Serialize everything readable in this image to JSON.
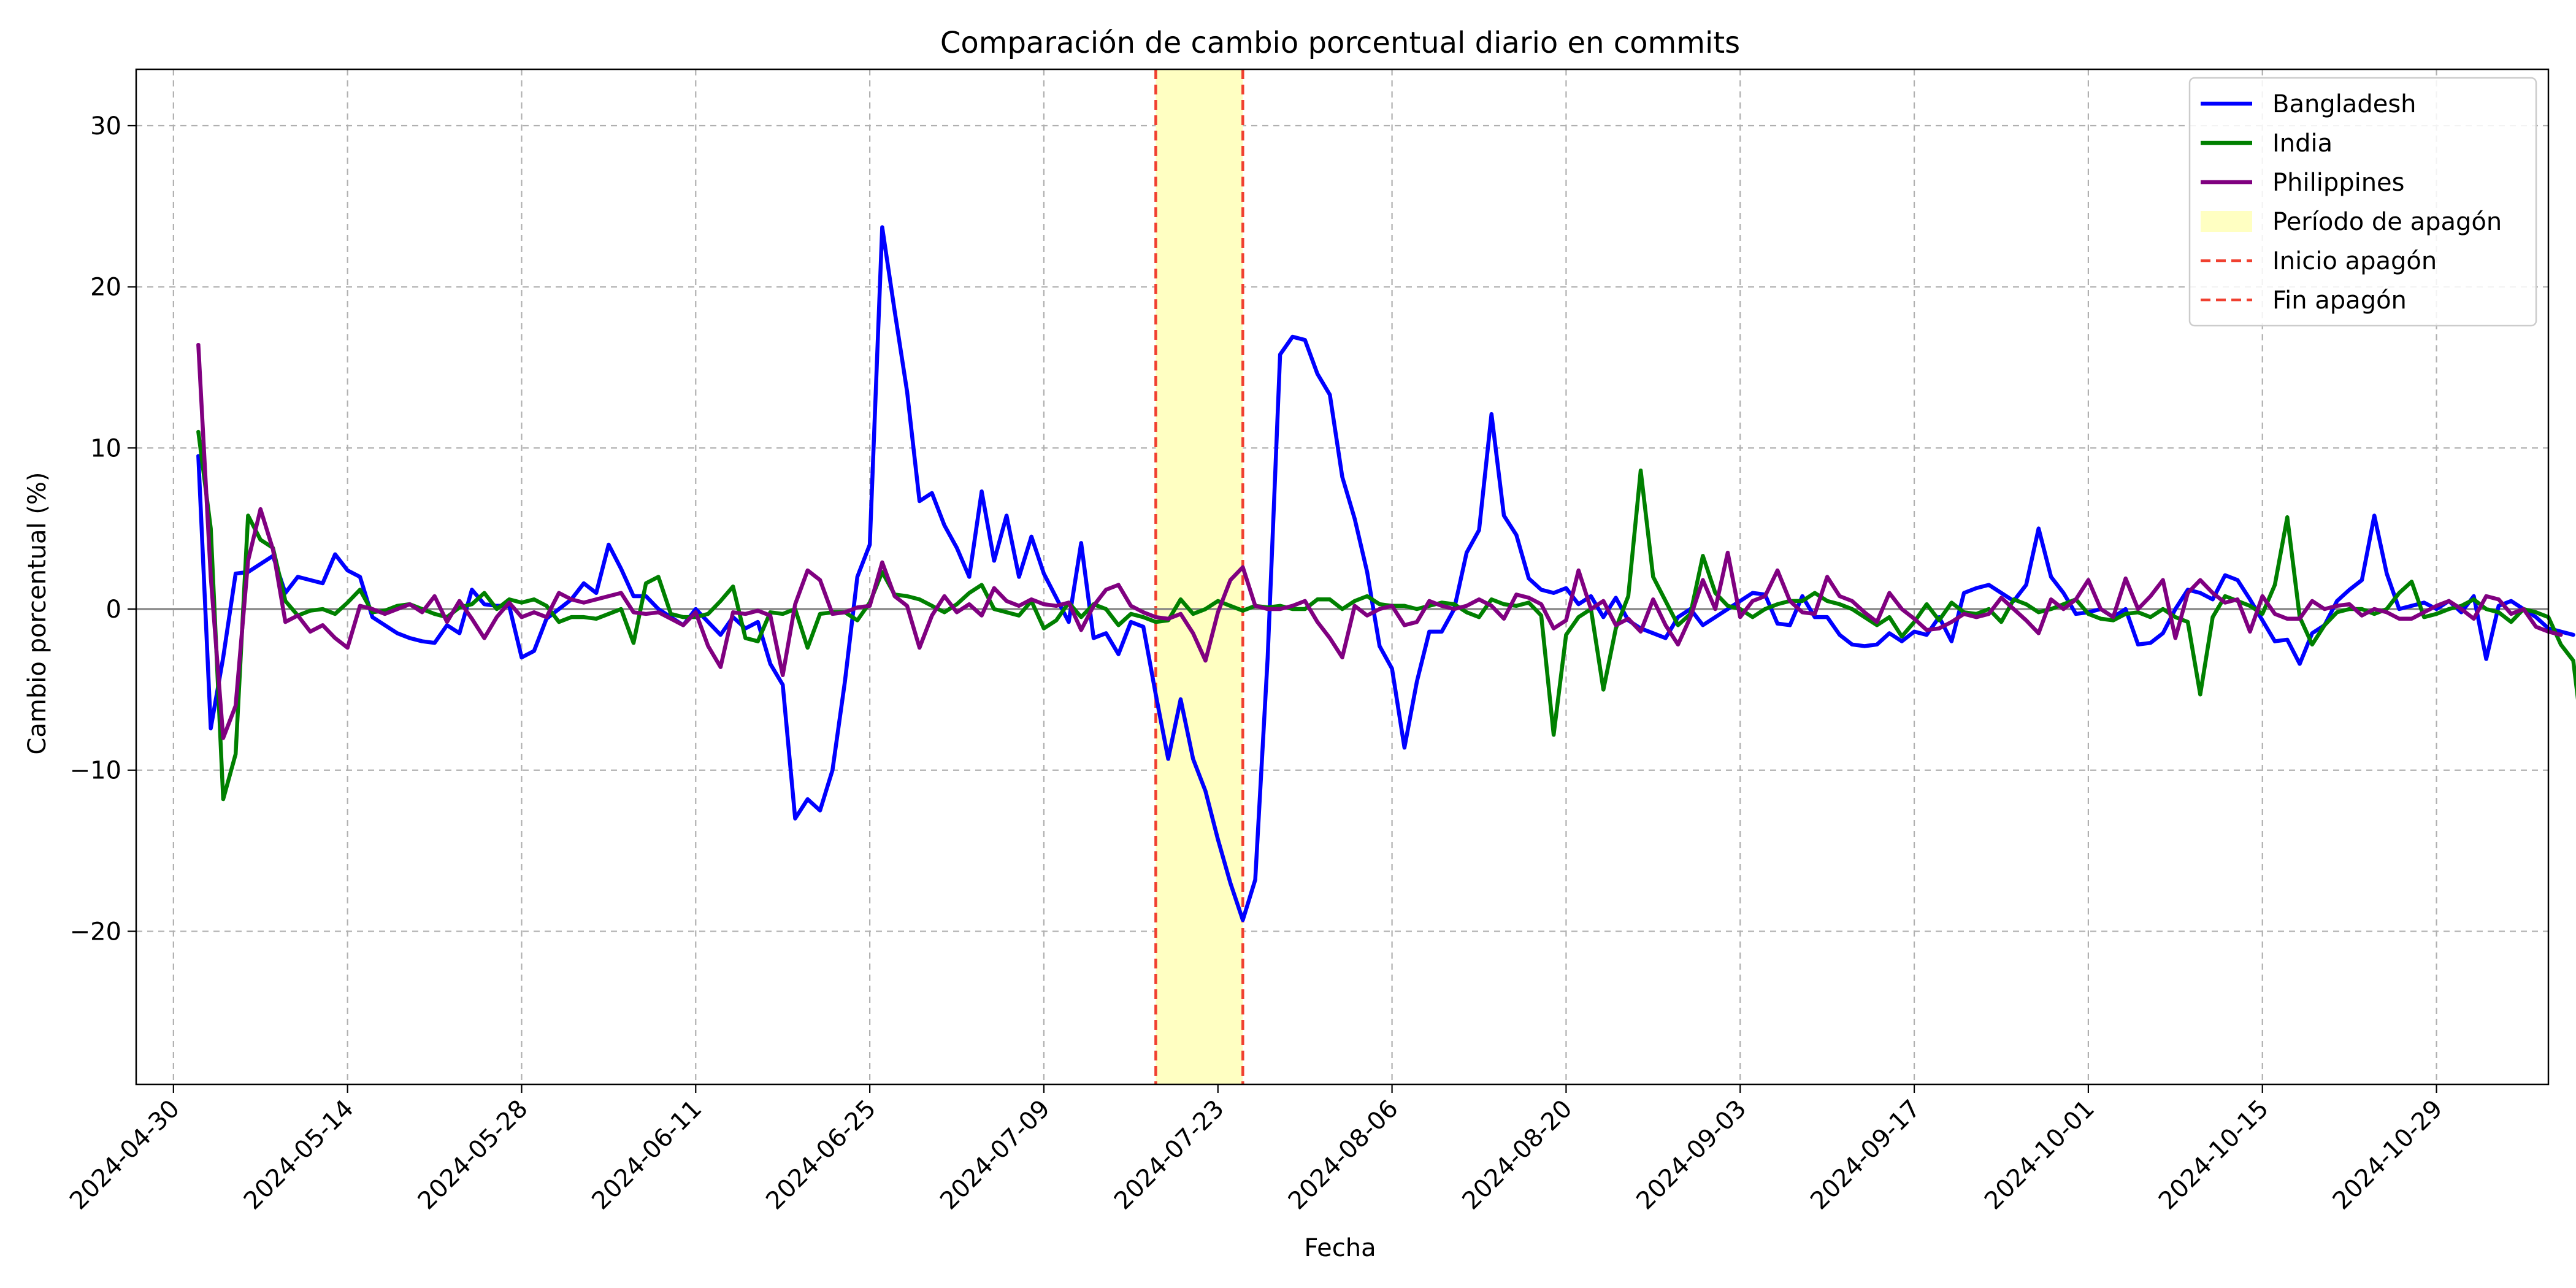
{
  "chart_data": {
    "type": "line",
    "title": "Comparación de cambio porcentual diario en commits",
    "xlabel": "Fecha",
    "ylabel": "Cambio porcentual (%)",
    "x_start": "2024-05-02",
    "x_end": "2024-11-01",
    "xlim": [
      "2024-04-27",
      "2024-11-07"
    ],
    "ylim": [
      -29.5,
      33.5
    ],
    "x_ticks": [
      "2024-04-30",
      "2024-05-14",
      "2024-05-28",
      "2024-06-11",
      "2024-06-25",
      "2024-07-09",
      "2024-07-23",
      "2024-08-06",
      "2024-08-20",
      "2024-09-03",
      "2024-09-17",
      "2024-10-01",
      "2024-10-15",
      "2024-10-29"
    ],
    "y_ticks": [
      -20,
      -10,
      0,
      10,
      20,
      30
    ],
    "grid": true,
    "zero_line": true,
    "legend_position": "top-right",
    "blackout": {
      "start": "2024-07-18",
      "end": "2024-07-25",
      "label": "Período de apagón",
      "start_label": "Inicio apagón",
      "end_label": "Fin apagón",
      "fill_color": "#ffffc2",
      "line_color": "#f04030"
    },
    "series": [
      {
        "name": "Bangladesh",
        "color": "#0000ff",
        "values": [
          9.5,
          -7.4,
          -3.0,
          2.2,
          2.3,
          2.8,
          3.3,
          1.0,
          2.0,
          1.8,
          1.6,
          3.4,
          2.4,
          2.0,
          -0.5,
          -1.0,
          -1.5,
          -1.8,
          -2.0,
          -2.1,
          -1.0,
          -1.5,
          1.2,
          0.3,
          0.2,
          0.2,
          -3.0,
          -2.6,
          -0.6,
          0.0,
          0.6,
          1.6,
          1.0,
          4.0,
          2.5,
          0.8,
          0.8,
          0.0,
          -0.5,
          -1.0,
          0.0,
          -0.8,
          -1.6,
          -0.5,
          -1.2,
          -0.8,
          -3.4,
          -4.7,
          -13.0,
          -11.8,
          -12.5,
          -10.0,
          -4.5,
          2.0,
          4.0,
          23.7,
          18.5,
          13.5,
          6.7,
          7.2,
          5.2,
          3.8,
          2.0,
          7.3,
          3.0,
          5.8,
          2.0,
          4.5,
          2.2,
          0.7,
          -0.8,
          4.1,
          -1.8,
          -1.5,
          -2.8,
          -0.8,
          -1.1,
          -5.3,
          -9.3,
          -5.6,
          -9.3,
          -11.3,
          -14.3,
          -17.0,
          -19.3,
          -16.8,
          -3.0,
          15.8,
          16.9,
          16.7,
          14.6,
          13.3,
          8.2,
          5.6,
          2.3,
          -2.3,
          -3.7,
          -8.6,
          -4.5,
          -1.4,
          -1.4,
          0.0,
          3.5,
          4.9,
          12.1,
          5.8,
          4.6,
          1.9,
          1.2,
          1.0,
          1.3,
          0.3,
          0.8,
          -0.5,
          0.7,
          -0.7,
          -1.2,
          -1.5,
          -1.8,
          -0.5,
          0.0,
          -1.0,
          -0.5,
          0.0,
          0.5,
          1.0,
          0.9,
          -0.9,
          -1.0,
          0.8,
          -0.5,
          -0.5,
          -1.6,
          -2.2,
          -2.3,
          -2.2,
          -1.5,
          -2.0,
          -1.4,
          -1.6,
          -0.5,
          -2.0,
          1.0,
          1.3,
          1.5,
          1.0,
          0.5,
          1.5,
          5.0,
          2.0,
          1.0,
          -0.3,
          -0.2,
          0.0,
          -0.5,
          0.0,
          -2.2,
          -2.1,
          -1.5,
          0.0,
          1.2,
          1.0,
          0.6,
          2.1,
          1.8,
          0.6,
          -0.7,
          -2.0,
          -1.9,
          -3.4,
          -1.5,
          -1.0,
          0.5,
          1.2,
          1.8,
          5.8,
          2.2,
          0.0,
          0.2,
          0.4,
          0.0,
          0.5,
          -0.2,
          0.8,
          -3.1,
          0.2,
          0.5,
          0.0,
          -0.5,
          -1.2,
          -1.4,
          -1.6
        ]
      },
      {
        "name": "India",
        "color": "#008000",
        "values": [
          11.0,
          5.0,
          -11.8,
          -9.0,
          5.8,
          4.3,
          3.8,
          0.5,
          -0.4,
          -0.1,
          0.0,
          -0.3,
          0.4,
          1.2,
          -0.2,
          -0.1,
          0.2,
          0.3,
          0.0,
          -0.3,
          -0.5,
          0.1,
          0.3,
          1.0,
          0.0,
          0.6,
          0.4,
          0.6,
          0.2,
          -0.8,
          -0.5,
          -0.5,
          -0.6,
          -0.3,
          0.0,
          -2.1,
          1.6,
          2.0,
          -0.3,
          -0.5,
          -0.5,
          -0.3,
          0.5,
          1.4,
          -1.8,
          -2.0,
          -0.2,
          -0.3,
          0.0,
          -2.4,
          -0.3,
          -0.2,
          -0.2,
          -0.7,
          0.4,
          2.3,
          0.9,
          0.8,
          0.6,
          0.2,
          -0.2,
          0.3,
          1.0,
          1.5,
          0.0,
          -0.2,
          -0.4,
          0.5,
          -1.2,
          -0.7,
          0.4,
          -0.5,
          0.3,
          0.0,
          -1.0,
          -0.3,
          -0.5,
          -0.8,
          -0.7,
          0.6,
          -0.3,
          0.0,
          0.5,
          0.2,
          -0.1,
          0.2,
          0.1,
          0.2,
          0.0,
          0.0,
          0.6,
          0.6,
          0.0,
          0.5,
          0.8,
          0.3,
          0.2,
          0.2,
          0.0,
          0.2,
          0.4,
          0.3,
          -0.2,
          -0.5,
          0.6,
          0.3,
          0.2,
          0.4,
          -0.4,
          -7.8,
          -1.6,
          -0.5,
          0.0,
          -5.0,
          -1.2,
          0.8,
          8.6,
          2.0,
          0.5,
          -1.0,
          -0.3,
          3.3,
          1.0,
          0.2,
          0.0,
          -0.5,
          0.0,
          0.3,
          0.5,
          0.5,
          1.0,
          0.5,
          0.3,
          0.0,
          -0.5,
          -1.0,
          -0.5,
          -1.7,
          -0.8,
          0.3,
          -0.7,
          0.4,
          -0.2,
          -0.3,
          0.0,
          -0.8,
          0.6,
          0.3,
          -0.2,
          0.0,
          0.3,
          0.6,
          -0.3,
          -0.6,
          -0.7,
          -0.3,
          -0.2,
          -0.5,
          0.0,
          -0.5,
          -0.8,
          -5.3,
          -0.5,
          0.8,
          0.5,
          0.2,
          -0.3,
          1.5,
          5.7,
          -0.5,
          -2.2,
          -1.0,
          -0.2,
          0.0,
          0.0,
          -0.3,
          0.0,
          1.0,
          1.7,
          -0.5,
          -0.3,
          0.0,
          0.2,
          0.6,
          0.0,
          -0.2,
          -0.8,
          0.0,
          -0.2,
          -0.5,
          -2.2,
          -3.2,
          -9.6
        ]
      },
      {
        "name": "Philippines",
        "color": "#800080",
        "values": [
          16.4,
          2.0,
          -8.0,
          -6.0,
          3.0,
          6.2,
          3.7,
          -0.8,
          -0.4,
          -1.4,
          -1.0,
          -1.8,
          -2.4,
          0.2,
          0.0,
          -0.3,
          0.0,
          0.3,
          -0.2,
          0.8,
          -0.8,
          0.5,
          -0.6,
          -1.8,
          -0.5,
          0.4,
          -0.5,
          -0.2,
          -0.5,
          1.0,
          0.6,
          0.4,
          0.6,
          0.8,
          1.0,
          -0.2,
          -0.3,
          -0.2,
          -0.6,
          -1.0,
          -0.2,
          -2.3,
          -3.6,
          -0.2,
          -0.3,
          -0.1,
          -0.4,
          -4.1,
          0.3,
          2.4,
          1.8,
          -0.3,
          -0.2,
          0.1,
          0.2,
          2.9,
          0.8,
          0.2,
          -2.4,
          -0.4,
          0.8,
          -0.2,
          0.3,
          -0.4,
          1.3,
          0.5,
          0.2,
          0.6,
          0.3,
          0.2,
          0.4,
          -1.3,
          0.2,
          1.2,
          1.5,
          0.2,
          -0.2,
          -0.5,
          -0.6,
          -0.3,
          -1.5,
          -3.2,
          -0.2,
          1.8,
          2.6,
          0.2,
          0.0,
          0.0,
          0.2,
          0.5,
          -0.8,
          -1.8,
          -3.0,
          0.2,
          -0.4,
          0.0,
          0.2,
          -1.0,
          -0.8,
          0.5,
          0.2,
          0.0,
          0.2,
          0.6,
          0.2,
          -0.6,
          0.9,
          0.7,
          0.3,
          -1.2,
          -0.7,
          2.4,
          0.0,
          0.5,
          -1.0,
          -0.6,
          -1.4,
          0.6,
          -1.0,
          -2.2,
          -0.5,
          1.8,
          0.0,
          3.5,
          -0.5,
          0.5,
          0.8,
          2.4,
          0.5,
          -0.2,
          -0.3,
          2.0,
          0.8,
          0.5,
          -0.2,
          -0.8,
          1.0,
          0.0,
          -0.6,
          -1.3,
          -1.2,
          -0.8,
          -0.3,
          -0.5,
          -0.3,
          0.7,
          0.0,
          -0.7,
          -1.5,
          0.6,
          0.0,
          0.6,
          1.8,
          0.0,
          -0.5,
          1.9,
          0.0,
          0.8,
          1.8,
          -1.8,
          1.0,
          1.8,
          1.0,
          0.4,
          0.6,
          -1.4,
          0.8,
          -0.3,
          -0.6,
          -0.6,
          0.5,
          0.0,
          0.2,
          0.3,
          -0.4,
          0.0,
          -0.2,
          -0.6,
          -0.6,
          -0.2,
          0.2,
          0.5,
          0.0,
          -0.6,
          0.8,
          0.6,
          -0.3,
          0.0,
          -1.1,
          -1.4,
          -1.6
        ]
      }
    ]
  }
}
